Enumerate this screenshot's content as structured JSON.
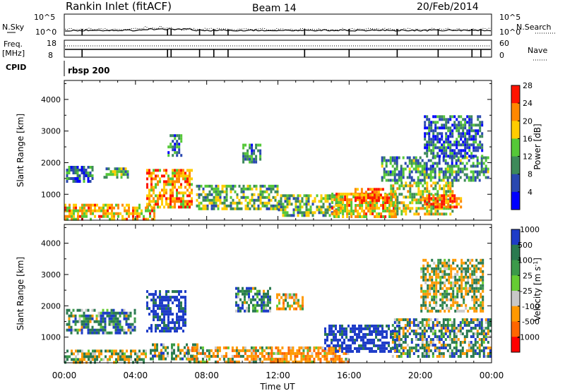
{
  "header": {
    "station": "Rankin Inlet (fitACF)",
    "beam": "Beam 14",
    "date": "20/Feb/2014"
  },
  "noise_panel": {
    "left_label": "N.Sky",
    "right_label": "N.Search",
    "left_ticks": [
      "10^5",
      "10^0"
    ],
    "right_ticks": [
      "10^5",
      "10^0"
    ]
  },
  "freq_panel": {
    "left_label_1": "Freq.",
    "left_label_2": "[MHz]",
    "right_label": "Nave",
    "left_ticks": [
      "18",
      "8"
    ],
    "right_ticks": [
      "60",
      "0"
    ]
  },
  "cpid": {
    "label": "CPID",
    "value": "rbsp 200"
  },
  "chart_data": [
    {
      "type": "heatmap",
      "title": "",
      "xlabel": "Time UT",
      "ylabel": "Slant Range [km]",
      "x_ticks": [
        "00:00",
        "04:00",
        "08:00",
        "12:00",
        "16:00",
        "20:00",
        "00:00"
      ],
      "y_ticks": [
        "1000",
        "2000",
        "3000",
        "4000"
      ],
      "xlim_hours": [
        0,
        24
      ],
      "ylim_km": [
        180,
        4600
      ],
      "colorbar": {
        "label": "Power [dB]",
        "ticks": [
          "4",
          "8",
          "12",
          "16",
          "20",
          "24",
          "28"
        ],
        "range": [
          0,
          30
        ],
        "colors": [
          "#0000ff",
          "#2a48b0",
          "#3d8a5a",
          "#55c838",
          "#ffcc00",
          "#ff8800",
          "#ff1400"
        ]
      },
      "regions": [
        {
          "t": [
            0,
            5
          ],
          "r": [
            180,
            700
          ],
          "value": 20
        },
        {
          "t": [
            0.1,
            1.6
          ],
          "r": [
            1450,
            1900
          ],
          "value": 9
        },
        {
          "t": [
            2.2,
            3.6
          ],
          "r": [
            1500,
            1850
          ],
          "value": 12
        },
        {
          "t": [
            4.6,
            7.2
          ],
          "r": [
            600,
            1800
          ],
          "value": 22
        },
        {
          "t": [
            5.8,
            6.6
          ],
          "r": [
            2200,
            2900
          ],
          "value": 10
        },
        {
          "t": [
            7.4,
            12.0
          ],
          "r": [
            500,
            1300
          ],
          "value": 14
        },
        {
          "t": [
            10.0,
            11.0
          ],
          "r": [
            2000,
            2600
          ],
          "value": 10
        },
        {
          "t": [
            12.0,
            15.6
          ],
          "r": [
            300,
            1000
          ],
          "value": 14
        },
        {
          "t": [
            15.0,
            18.6
          ],
          "r": [
            300,
            1050
          ],
          "value": 20
        },
        {
          "t": [
            16.3,
            18.4
          ],
          "r": [
            800,
            1200
          ],
          "value": 26
        },
        {
          "t": [
            18.3,
            21.8
          ],
          "r": [
            400,
            1400
          ],
          "value": 17
        },
        {
          "t": [
            20.2,
            22.3
          ],
          "r": [
            600,
            1000
          ],
          "value": 26
        },
        {
          "t": [
            17.8,
            23.8
          ],
          "r": [
            1400,
            2200
          ],
          "value": 11
        },
        {
          "t": [
            20.2,
            23.5
          ],
          "r": [
            2200,
            3500
          ],
          "value": 8
        }
      ]
    },
    {
      "type": "heatmap",
      "title": "",
      "xlabel": "Time UT",
      "ylabel": "Slant Range [km]",
      "x_ticks": [
        "00:00",
        "04:00",
        "08:00",
        "12:00",
        "16:00",
        "20:00",
        "00:00"
      ],
      "y_ticks": [
        "1000",
        "2000",
        "3000",
        "4000"
      ],
      "xlim_hours": [
        0,
        24
      ],
      "ylim_km": [
        180,
        4600
      ],
      "colorbar": {
        "label": "Velocity [m s^-1]",
        "ticks": [
          "1000",
          "500",
          "100",
          "25",
          "-25",
          "-100",
          "-500",
          "-1000"
        ],
        "range": [
          -1000,
          1000
        ],
        "colors": [
          "#1e3cc8",
          "#2a7a50",
          "#3c9a4a",
          "#66cc33",
          "#c8c8c8",
          "#ff9900",
          "#ff6600",
          "#ff0000"
        ]
      },
      "regions": [
        {
          "t": [
            0,
            4.6
          ],
          "r": [
            180,
            600
          ],
          "value": 60
        },
        {
          "t": [
            0.1,
            4.0
          ],
          "r": [
            1100,
            1900
          ],
          "value": 300
        },
        {
          "t": [
            4.6,
            6.8
          ],
          "r": [
            1200,
            2500
          ],
          "value": 800
        },
        {
          "t": [
            4.8,
            7.5
          ],
          "r": [
            300,
            800
          ],
          "value": 200
        },
        {
          "t": [
            6.9,
            11.6
          ],
          "r": [
            180,
            700
          ],
          "value": -200
        },
        {
          "t": [
            9.6,
            11.6
          ],
          "r": [
            1800,
            2600
          ],
          "value": 300
        },
        {
          "t": [
            11.6,
            16.0
          ],
          "r": [
            180,
            700
          ],
          "value": -400
        },
        {
          "t": [
            11.9,
            13.4
          ],
          "r": [
            1900,
            2400
          ],
          "value": -300
        },
        {
          "t": [
            14.6,
            18.8
          ],
          "r": [
            500,
            1400
          ],
          "value": 800
        },
        {
          "t": [
            18.4,
            23.9
          ],
          "r": [
            400,
            1600
          ],
          "value": 200
        },
        {
          "t": [
            20.0,
            23.5
          ],
          "r": [
            1800,
            3500
          ],
          "value": 10
        }
      ]
    }
  ]
}
